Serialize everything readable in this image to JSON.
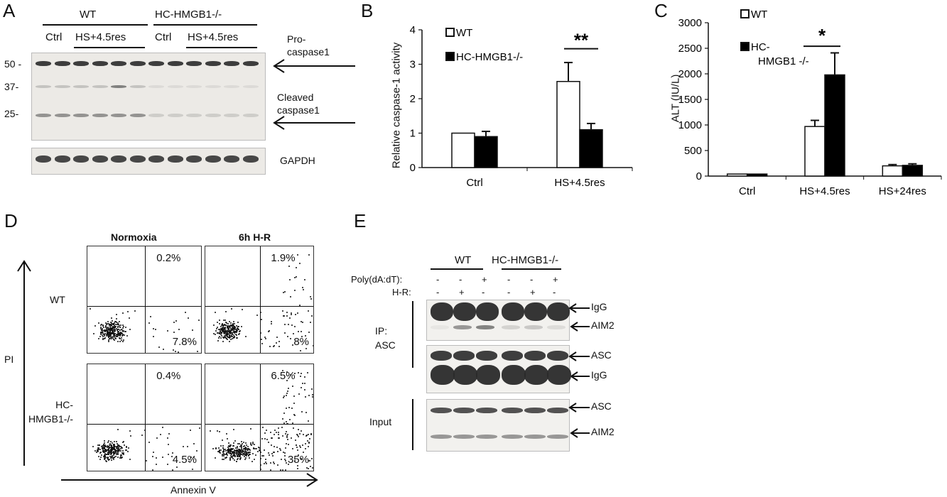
{
  "panelA": {
    "label": "A",
    "groups": [
      "WT",
      "HC-HMGB1-/-"
    ],
    "conditions": [
      "Ctrl",
      "HS+4.5res",
      "Ctrl",
      "HS+4.5res"
    ],
    "markers": [
      "50 -",
      "37-",
      "25-"
    ],
    "annotations": [
      "Pro-\ncaspase1",
      "Cleaved\ncaspase1"
    ],
    "loading": "GAPDH"
  },
  "panelB": {
    "label": "B",
    "chart_data": {
      "type": "bar",
      "ylabel": "Relative caspase-1 activity",
      "categories": [
        "Ctrl",
        "HS+4.5res"
      ],
      "ylim": [
        0,
        4
      ],
      "yticks": [
        "0",
        "1",
        "2",
        "3",
        "4"
      ],
      "series": [
        {
          "name": "WT",
          "values": [
            1.0,
            2.5
          ],
          "errors": [
            0.0,
            0.55
          ],
          "color": "#ffffff"
        },
        {
          "name": "HC-HMGB1-/-",
          "values": [
            0.9,
            1.1
          ],
          "errors": [
            0.15,
            0.18
          ],
          "color": "#000000"
        }
      ],
      "significance": "**"
    }
  },
  "panelC": {
    "label": "C",
    "chart_data": {
      "type": "bar",
      "ylabel": "ALT (IU/L)",
      "categories": [
        "Ctrl",
        "HS+4.5res",
        "HS+24res"
      ],
      "ylim": [
        0,
        3000
      ],
      "yticks": [
        "0",
        "500",
        "1000",
        "1500",
        "2000",
        "2500",
        "3000"
      ],
      "series": [
        {
          "name": "WT",
          "values": [
            40,
            970,
            200
          ],
          "errors": [
            0,
            120,
            25
          ],
          "color": "#ffffff"
        },
        {
          "name": "HC-\nHMGB1 -/-",
          "values": [
            40,
            1980,
            210
          ],
          "errors": [
            0,
            430,
            30
          ],
          "color": "#000000"
        }
      ],
      "significance": "*"
    }
  },
  "panelD": {
    "label": "D",
    "columns": [
      "Normoxia",
      "6h H-R"
    ],
    "rows": [
      "WT",
      "HC-\nHMGB1-/-"
    ],
    "yaxis": "PI",
    "xaxis": "Annexin V",
    "quadrants": [
      {
        "upper": "0.2%",
        "lower": "7.8%"
      },
      {
        "upper": "1.9%",
        "lower": "8%"
      },
      {
        "upper": "0.4%",
        "lower": "4.5%"
      },
      {
        "upper": "6.5%",
        "lower": "35%"
      }
    ]
  },
  "panelE": {
    "label": "E",
    "groups": [
      "WT",
      "HC-HMGB1-/-"
    ],
    "treatment_rows": [
      {
        "name": "Poly(dA:dT):",
        "signs": [
          "-",
          "-",
          "+",
          "-",
          "-",
          "+"
        ]
      },
      {
        "name": "H-R:",
        "signs": [
          "-",
          "+",
          "-",
          "-",
          "+",
          "-"
        ]
      }
    ],
    "ip_label": "IP:\nASC",
    "input_label": "Input",
    "arrows": [
      "IgG",
      "AIM2",
      "ASC",
      "IgG",
      "ASC",
      "AIM2"
    ]
  }
}
